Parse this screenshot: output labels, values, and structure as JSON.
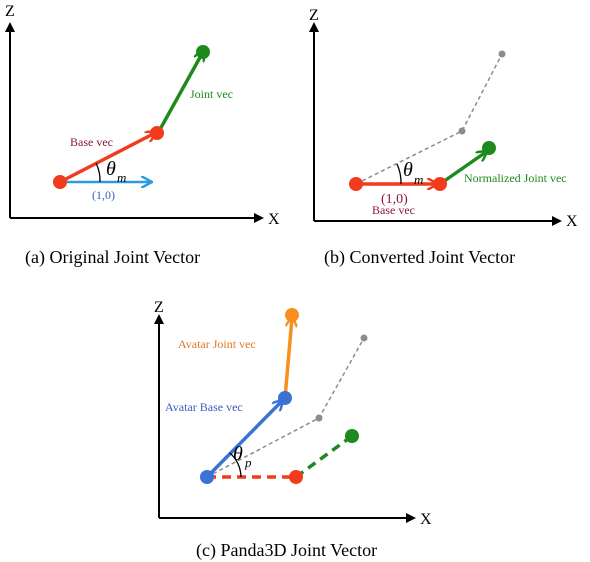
{
  "colors": {
    "base_red": "#f23a1c",
    "joint_green": "#1e8a1e",
    "axis_blue": "#2b9be0",
    "label_maroon": "#8b1a3a",
    "label_blue": "#3a5ec2",
    "dashed_gray": "#8c8c8c",
    "avatar_orange": "#f7901e",
    "avatar_blue": "#3a72d6",
    "label_orange": "#e07a2a"
  },
  "panel_a": {
    "axis_z": "Z",
    "axis_x": "X",
    "base_label": "Base vec",
    "joint_label": "Joint vec",
    "unit_label": "(1,0)",
    "theta": "θ",
    "theta_sub": "m",
    "caption": "(a) Original Joint Vector"
  },
  "panel_b": {
    "axis_z": "Z",
    "axis_x": "X",
    "base_label": "Base vec",
    "joint_label": "Normalized Joint vec",
    "unit_label": "(1,0)",
    "theta": "θ",
    "theta_sub": "m",
    "caption": "(b) Converted Joint Vector"
  },
  "panel_c": {
    "axis_z": "Z",
    "axis_x": "X",
    "avatar_joint_label": "Avatar Joint vec",
    "avatar_base_label": "Avatar Base vec",
    "theta": "θ",
    "theta_sub": "p",
    "caption": "(c) Panda3D Joint Vector"
  }
}
